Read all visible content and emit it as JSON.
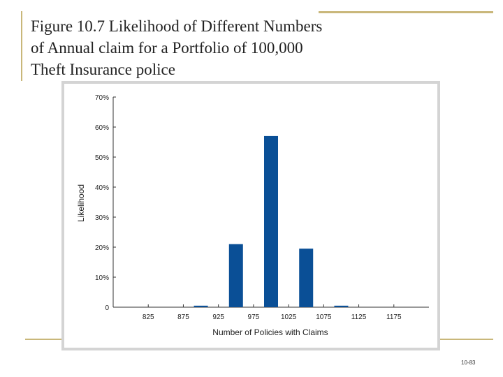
{
  "slide": {
    "title": "Figure 10.7  Likelihood of Different Numbers\nof Annual claim for a Portfolio of 100,000\nTheft Insurance police",
    "number": "10-83"
  },
  "colors": {
    "bar": "#0a4f96",
    "rule": "#c9b77a",
    "frame": "#d4d4d4"
  },
  "chart_data": {
    "type": "bar",
    "xlabel": "Number of Policies with Claims",
    "ylabel": "Likelihood",
    "ylim": [
      0,
      70
    ],
    "yticks": [
      0,
      10,
      20,
      30,
      40,
      50,
      60,
      70
    ],
    "ytick_labels": [
      "0",
      "10%",
      "20%",
      "30%",
      "40%",
      "50%",
      "60%",
      "70%"
    ],
    "xticks": [
      825,
      875,
      925,
      975,
      1025,
      1075,
      1125,
      1175
    ],
    "xrange": [
      775,
      1225
    ],
    "bars": [
      {
        "x": 900,
        "value": 0.5
      },
      {
        "x": 950,
        "value": 21
      },
      {
        "x": 1000,
        "value": 57
      },
      {
        "x": 1050,
        "value": 19.5
      },
      {
        "x": 1100,
        "value": 0.5
      }
    ],
    "grid": false
  }
}
